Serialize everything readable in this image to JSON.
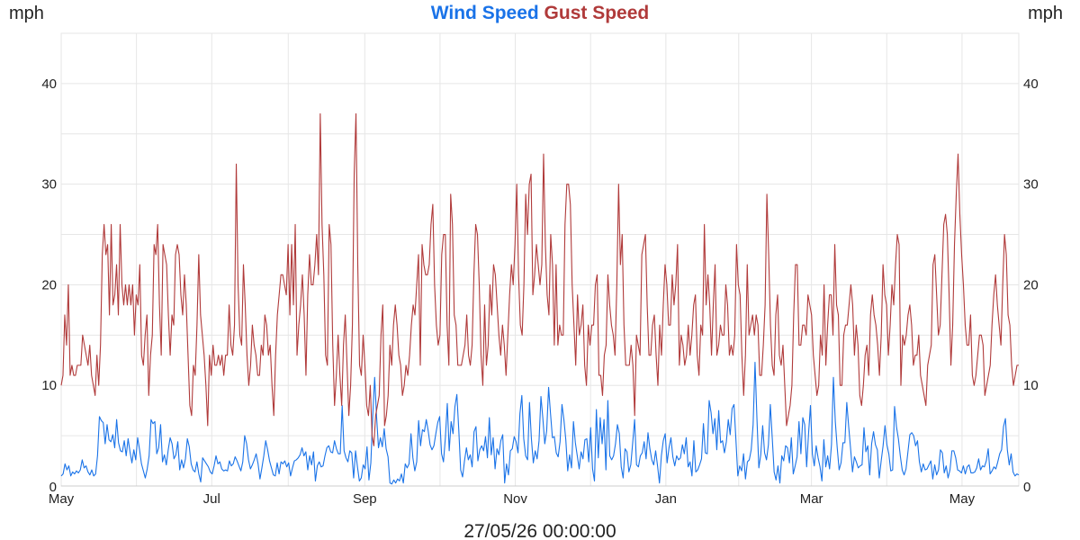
{
  "chart_data": {
    "type": "line",
    "title_parts": [
      {
        "text": "Wind Speed",
        "color": "#1a73e8"
      },
      {
        "text": "Gust Speed",
        "color": "#b03a3a"
      }
    ],
    "left_unit": "mph",
    "right_unit": "mph",
    "footer": "27/05/26 00:00:00",
    "ylim": [
      0,
      45
    ],
    "yticks": [
      0,
      10,
      20,
      30,
      40
    ],
    "x_range": [
      0,
      388
    ],
    "grid": true,
    "x_ticks": [
      {
        "label": "May",
        "x": 0
      },
      {
        "label": "Jul",
        "x": 61
      },
      {
        "label": "Sep",
        "x": 123
      },
      {
        "label": "Nov",
        "x": 184
      },
      {
        "label": "Jan",
        "x": 245
      },
      {
        "label": "Mar",
        "x": 304
      },
      {
        "label": "May",
        "x": 365
      }
    ],
    "series": [
      {
        "name": "Wind Speed",
        "color": "#1a73e8",
        "values": [
          1.0,
          1.2,
          2.2,
          1.6,
          2.0,
          1.0,
          1.4,
          1.2,
          1.5,
          1.3,
          1.6,
          2.6,
          1.8,
          2.0,
          1.4,
          1.1,
          1.6,
          1.0,
          1.2,
          3.0,
          6.9,
          6.5,
          6.3,
          4.2,
          6.1,
          4.6,
          4.4,
          5.1,
          3.8,
          6.6,
          4.3,
          3.5,
          3.4,
          4.5,
          3.0,
          4.7,
          3.4,
          2.3,
          3.6,
          2.6,
          4.8,
          3.6,
          2.2,
          1.5,
          0.8,
          1.7,
          3.0,
          6.6,
          6.2,
          6.4,
          3.2,
          3.8,
          6.1,
          2.4,
          3.1,
          2.1,
          3.6,
          4.8,
          4.2,
          2.7,
          3.1,
          4.4,
          1.6,
          2.6,
          1.8,
          2.7,
          4.7,
          3.9,
          2.2,
          1.6,
          1.4,
          2.4,
          1.2,
          0.4,
          2.8,
          2.5,
          2.2,
          1.9,
          1.4,
          1.2,
          2.0,
          3.0,
          2.2,
          2.4,
          1.7,
          1.5,
          1.6,
          1.5,
          2.5,
          2.0,
          2.2,
          2.9,
          2.5,
          2.0,
          1.5,
          2.4,
          5.0,
          4.2,
          2.6,
          1.7,
          2.1,
          2.6,
          3.2,
          2.2,
          0.7,
          1.8,
          3.0,
          4.5,
          3.6,
          2.5,
          1.8,
          1.1,
          1.0,
          2.3,
          1.2,
          2.4,
          2.2,
          2.5,
          1.9,
          2.3,
          1.0,
          1.8,
          2.5,
          2.6,
          2.8,
          3.1,
          3.8,
          3.0,
          3.4,
          1.6,
          3.0,
          2.1,
          3.4,
          0.5,
          2.0,
          2.4,
          1.9,
          2.0,
          3.0,
          3.8,
          4.0,
          3.4,
          3.3,
          4.5,
          3.7,
          3.2,
          3.2,
          8.0,
          3.5,
          2.8,
          2.4,
          3.5,
          3.3,
          0.8,
          3.5,
          1.9,
          0.5,
          0.8,
          2.1,
          1.7,
          3.9,
          0.6,
          2.3,
          7.0,
          10.8,
          6.9,
          3.8,
          4.8,
          3.9,
          5.7,
          3.7,
          2.9,
          0.3,
          0.2,
          0.6,
          0.3,
          0.7,
          0.5,
          1.2,
          0.3,
          2.2,
          1.8,
          2.2,
          5.2,
          2.8,
          1.5,
          2.4,
          6.5,
          4.0,
          5.6,
          5.4,
          6.6,
          5.5,
          4.1,
          3.6,
          4.0,
          5.2,
          6.3,
          6.9,
          3.2,
          2.4,
          4.8,
          8.2,
          3.5,
          6.4,
          5.2,
          7.9,
          9.1,
          5.6,
          1.6,
          0.9,
          2.5,
          3.8,
          2.6,
          3.1,
          1.9,
          5.4,
          5.9,
          2.5,
          3.6,
          4.0,
          3.5,
          4.9,
          2.8,
          6.8,
          3.1,
          4.8,
          1.7,
          3.7,
          3.1,
          4.5,
          5.1,
          0.3,
          2.2,
          1.1,
          3.5,
          3.7,
          4.9,
          4.4,
          3.3,
          7.2,
          9.0,
          4.7,
          3.0,
          2.6,
          8.3,
          4.7,
          2.3,
          3.5,
          2.7,
          4.5,
          8.9,
          6.7,
          4.2,
          5.5,
          9.8,
          7.2,
          4.8,
          4.9,
          3.3,
          2.9,
          4.4,
          8.1,
          6.6,
          4.6,
          1.5,
          3.1,
          1.8,
          6.4,
          4.3,
          3.0,
          1.7,
          3.4,
          2.7,
          4.6,
          4.7,
          2.4,
          5.8,
          1.7,
          0.5,
          7.6,
          2.8,
          6.8,
          4.2,
          6.6,
          1.6,
          8.5,
          3.0,
          2.6,
          3.0,
          4.2,
          6.1,
          5.2,
          1.9,
          0.8,
          3.7,
          3.4,
          1.4,
          2.1,
          4.3,
          6.6,
          2.1,
          1.9,
          3.0,
          3.3,
          4.4,
          2.7,
          5.3,
          3.7,
          2.6,
          2.1,
          3.5,
          2.0,
          0.3,
          3.0,
          4.5,
          5.2,
          2.3,
          3.8,
          4.8,
          2.9,
          2.0,
          3.0,
          2.6,
          2.8,
          4.1,
          3.2,
          4.8,
          1.9,
          2.4,
          1.0,
          4.5,
          1.4,
          1.6,
          2.1,
          2.7,
          6.2,
          3.3,
          3.2,
          8.5,
          7.3,
          5.2,
          6.7,
          3.6,
          7.5,
          4.3,
          4.5,
          3.3,
          4.4,
          6.6,
          5.1,
          7.7,
          8.1,
          4.6,
          1.0,
          2.0,
          1.5,
          3.2,
          0.7,
          2.4,
          2.6,
          3.6,
          6.1,
          12.3,
          6.7,
          1.8,
          3.1,
          6.0,
          3.3,
          2.6,
          4.1,
          8.1,
          4.8,
          1.4,
          0.6,
          2.0,
          0.3,
          3.0,
          2.5,
          4.0,
          3.8,
          2.3,
          4.8,
          1.2,
          2.0,
          2.9,
          6.4,
          3.2,
          6.8,
          6.1,
          1.9,
          5.2,
          8.0,
          3.2,
          2.0,
          4.0,
          2.8,
          1.9,
          0.5,
          4.6,
          1.9,
          3.0,
          1.7,
          4.1,
          10.8,
          6.4,
          3.8,
          1.6,
          2.3,
          4.3,
          4.3,
          8.3,
          5.9,
          3.7,
          1.4,
          2.9,
          2.4,
          1.8,
          2.0,
          2.1,
          5.8,
          3.4,
          4.0,
          1.1,
          4.2,
          5.4,
          4.1,
          3.6,
          0.8,
          2.5,
          4.0,
          6.0,
          4.1,
          3.2,
          1.5,
          1.6,
          7.9,
          5.9,
          4.7,
          3.0,
          1.6,
          1.1,
          1.7,
          3.4,
          5.1,
          5.3,
          5.0,
          4.0,
          4.5,
          2.4,
          1.4,
          2.2,
          1.6,
          1.7,
          2.1,
          2.5,
          0.7,
          2.1,
          1.1,
          1.6,
          3.6,
          3.3,
          1.3,
          2.0,
          0.8,
          1.6,
          3.5,
          3.5,
          2.8,
          1.6,
          1.5,
          1.3,
          2.0,
          1.2,
          1.9,
          2.1,
          1.3,
          1.3,
          1.4,
          1.8,
          2.7,
          1.6,
          2.0,
          1.9,
          2.5,
          3.7,
          1.2,
          1.5,
          1.9,
          1.7,
          2.4,
          3.2,
          3.6,
          5.9,
          6.7,
          3.6,
          2.1,
          3.2,
          1.4,
          1.0,
          1.2,
          1.1
        ]
      },
      {
        "name": "Gust Speed",
        "color": "#b03a3a",
        "values": [
          10,
          11,
          17,
          14,
          20,
          11,
          12,
          11,
          11,
          12,
          12,
          12,
          15,
          14,
          13,
          12,
          14,
          11,
          10,
          9,
          13,
          10,
          14,
          23,
          26,
          23,
          24,
          17,
          26,
          18,
          19,
          22,
          17,
          26,
          20,
          18,
          20,
          18,
          20,
          18,
          20,
          15,
          19,
          18,
          22,
          13,
          12,
          15,
          17,
          9,
          13,
          15,
          24,
          23,
          26,
          18,
          13,
          24,
          23,
          22,
          17,
          13,
          17,
          16,
          23,
          24,
          23,
          19,
          17,
          21,
          18,
          13,
          8,
          7,
          12,
          11,
          16,
          23,
          17,
          15,
          13,
          10,
          6,
          13,
          11,
          14,
          12,
          12,
          13,
          12,
          13,
          11,
          13,
          13,
          18,
          14,
          13,
          16,
          32,
          20,
          15,
          14,
          22,
          18,
          13,
          10,
          12,
          16,
          14,
          13,
          11,
          11,
          14,
          13,
          17,
          16,
          13,
          14,
          10,
          7,
          13,
          17,
          19,
          21,
          21,
          20,
          19,
          24,
          17,
          24,
          18,
          26,
          13,
          16,
          18,
          21,
          17,
          11,
          19,
          23,
          20,
          20,
          22,
          25,
          21,
          37,
          26,
          21,
          13,
          12,
          26,
          24,
          14,
          8,
          11,
          15,
          11,
          8,
          14,
          17,
          12,
          7,
          10,
          16,
          31,
          37,
          22,
          12,
          11,
          15,
          12,
          8,
          7,
          10,
          5,
          4,
          7,
          8,
          9,
          15,
          18,
          6,
          7,
          9,
          14,
          12,
          16,
          18,
          16,
          13,
          12,
          9,
          10,
          12,
          11,
          13,
          16,
          18,
          17,
          20,
          23,
          12,
          24,
          22,
          21,
          21,
          22,
          26,
          28,
          20,
          16,
          14,
          15,
          23,
          25,
          25,
          16,
          12,
          29,
          26,
          17,
          16,
          12,
          12,
          12,
          13,
          14,
          17,
          13,
          12,
          14,
          21,
          26,
          25,
          20,
          13,
          10,
          18,
          12,
          14,
          20,
          17,
          22,
          21,
          18,
          15,
          13,
          16,
          14,
          11,
          15,
          19,
          22,
          20,
          24,
          30,
          21,
          16,
          15,
          20,
          29,
          25,
          30,
          31,
          19,
          21,
          24,
          22,
          20,
          22,
          33,
          24,
          19,
          17,
          25,
          22,
          14,
          22,
          14,
          16,
          15,
          15,
          26,
          30,
          30,
          28,
          20,
          16,
          12,
          19,
          15,
          16,
          18,
          12,
          10,
          16,
          14,
          16,
          16,
          20,
          21,
          11,
          11,
          9,
          13,
          14,
          21,
          18,
          16,
          15,
          13,
          20,
          30,
          22,
          25,
          16,
          12,
          12,
          12,
          14,
          12,
          7,
          15,
          14,
          13,
          23,
          24,
          25,
          18,
          13,
          13,
          16,
          17,
          13,
          10,
          16,
          13,
          18,
          22,
          20,
          16,
          16,
          21,
          18,
          20,
          24,
          12,
          15,
          14,
          12,
          13,
          16,
          13,
          15,
          18,
          19,
          13,
          11,
          16,
          15,
          26,
          18,
          21,
          18,
          13,
          18,
          22,
          13,
          14,
          16,
          15,
          15,
          20,
          18,
          13,
          14,
          13,
          15,
          24,
          20,
          19,
          13,
          9,
          13,
          22,
          15,
          16,
          17,
          15,
          17,
          16,
          11,
          11,
          14,
          18,
          29,
          23,
          16,
          12,
          11,
          17,
          19,
          13,
          12,
          14,
          10,
          6,
          7,
          8,
          10,
          17,
          22,
          22,
          14,
          14,
          16,
          16,
          15,
          19,
          18,
          17,
          13,
          11,
          9,
          10,
          15,
          13,
          20,
          12,
          16,
          19,
          19,
          15,
          24,
          18,
          17,
          10,
          10,
          15,
          16,
          16,
          18,
          20,
          18,
          13,
          16,
          14,
          9,
          8,
          10,
          13,
          14,
          11,
          17,
          19,
          17,
          16,
          14,
          11,
          15,
          22,
          19,
          18,
          13,
          16,
          20,
          18,
          22,
          25,
          24,
          10,
          15,
          14,
          15,
          17,
          18,
          16,
          12,
          13,
          13,
          15,
          11,
          10,
          9,
          8,
          12,
          13,
          14,
          22,
          23,
          19,
          15,
          16,
          21,
          26,
          27,
          25,
          19,
          12,
          16,
          24,
          29,
          33,
          27,
          23,
          20,
          16,
          14,
          14,
          17,
          11,
          10,
          11,
          13,
          15,
          15,
          14,
          9,
          10,
          11,
          12,
          16,
          19,
          21,
          18,
          16,
          14,
          20,
          25,
          23,
          17,
          16,
          12,
          10,
          11,
          12,
          12
        ]
      }
    ]
  }
}
